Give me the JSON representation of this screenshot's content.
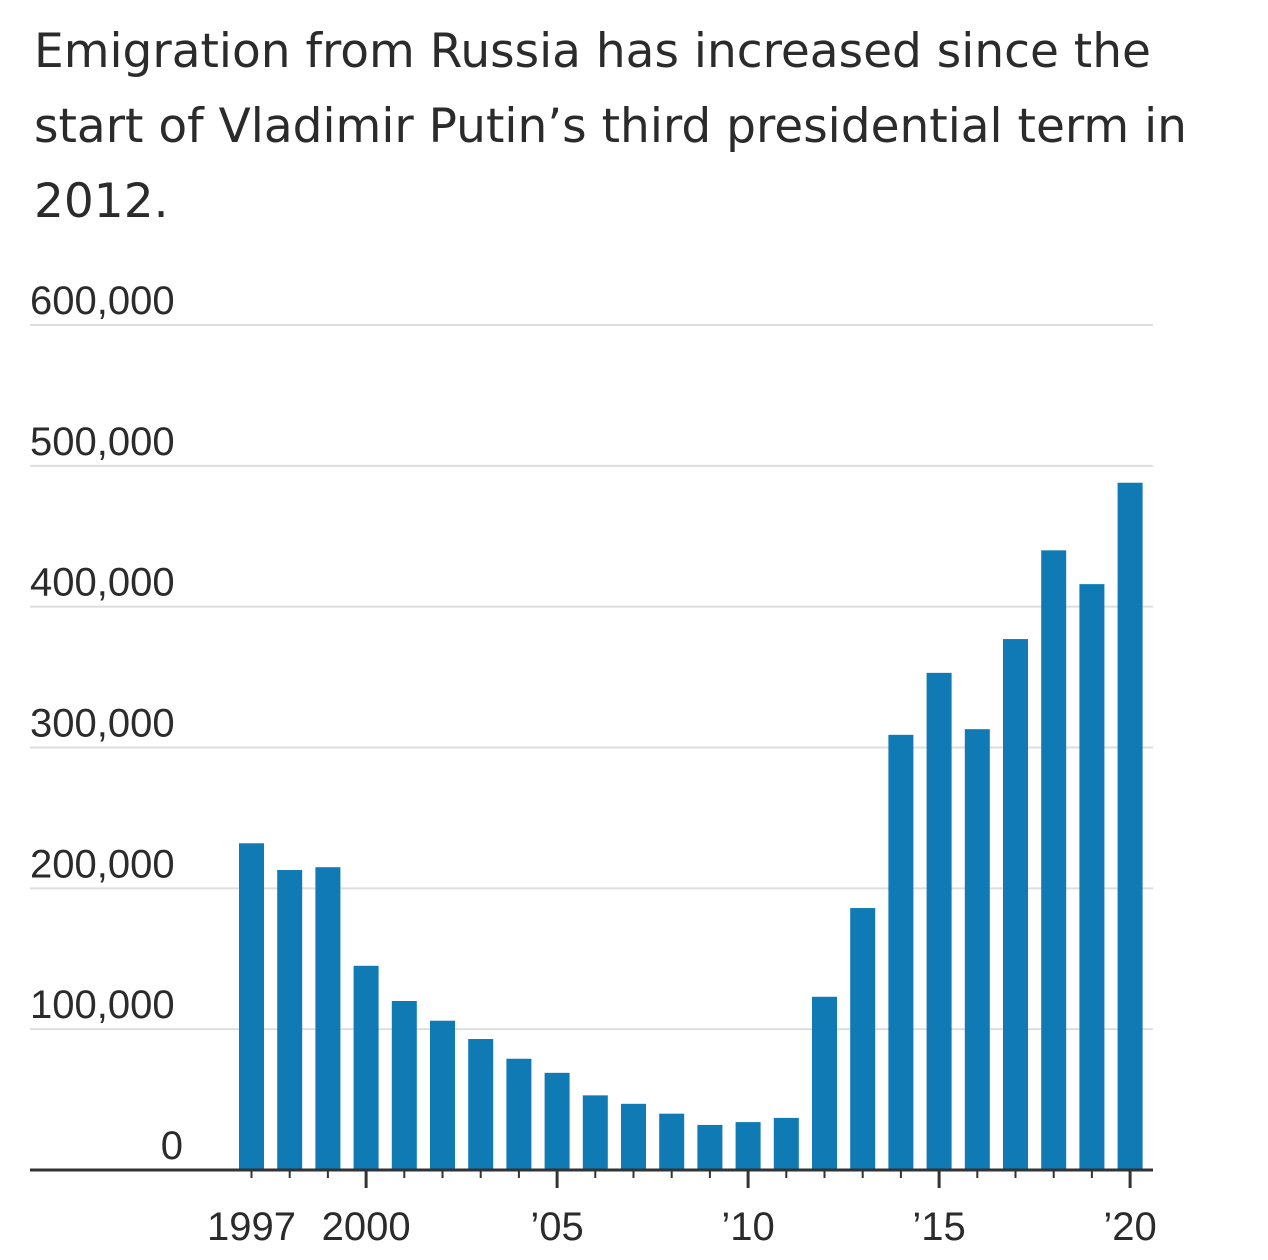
{
  "chart_data": {
    "type": "bar",
    "subtitle": "Emigration from Russia has increased since the start of Vladimir Putin’s third presidential term in 2012.",
    "x": [
      1997,
      1998,
      1999,
      2000,
      2001,
      2002,
      2003,
      2004,
      2005,
      2006,
      2007,
      2008,
      2009,
      2010,
      2011,
      2012,
      2013,
      2014,
      2015,
      2016,
      2017,
      2018,
      2019,
      2020
    ],
    "values": [
      232000,
      213000,
      215000,
      145000,
      120000,
      106000,
      93000,
      79000,
      69000,
      53000,
      47000,
      40000,
      32000,
      34000,
      37000,
      123000,
      186000,
      309000,
      353000,
      313000,
      377000,
      440000,
      416000,
      488000
    ],
    "ylim": [
      0,
      600000
    ],
    "yticks": [
      0,
      100000,
      200000,
      300000,
      400000,
      500000,
      600000
    ],
    "ytick_labels": [
      "0",
      "100,000",
      "200,000",
      "300,000",
      "400,000",
      "500,000",
      "600,000"
    ],
    "xtick_values": [
      1997,
      2000,
      2005,
      2010,
      2015,
      2020
    ],
    "xtick_labels": [
      "1997",
      "2000",
      "’05",
      "’10",
      "’15",
      "’20"
    ],
    "grid": true,
    "xlabel": "",
    "ylabel": "",
    "colors": {
      "bar": "#0f7ab3"
    }
  }
}
